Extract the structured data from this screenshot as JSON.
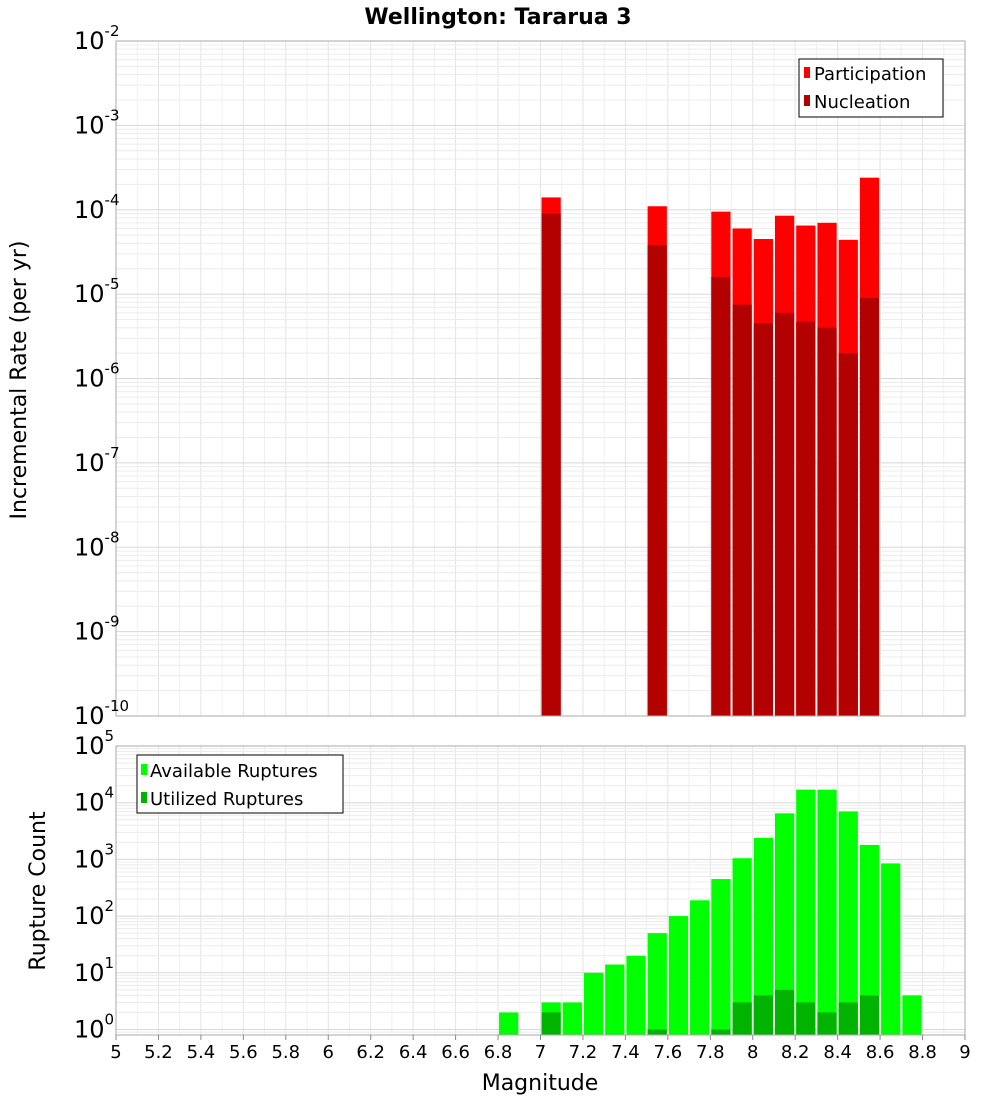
{
  "chart_data": [
    {
      "type": "bar",
      "title": "Wellington: Tararua 3",
      "xlabel": "Magnitude",
      "ylabel": "Incremental Rate (per yr)",
      "yscale": "log",
      "xlim": [
        5,
        9
      ],
      "ylim": [
        1e-10,
        0.01
      ],
      "bin_width": 0.1,
      "grid": true,
      "legend_position": "top-right",
      "y_tick_exponents": [
        "-2",
        "-3",
        "-4",
        "-5",
        "-6",
        "-7",
        "-8",
        "-9",
        "-10"
      ],
      "series": [
        {
          "name": "Participation",
          "color": "#ff0000",
          "x": [
            7.05,
            7.55,
            7.85,
            7.95,
            8.05,
            8.15,
            8.25,
            8.35,
            8.45,
            8.55
          ],
          "values": [
            0.00014,
            0.00011,
            9.5e-05,
            6e-05,
            4.5e-05,
            8.5e-05,
            6.5e-05,
            7e-05,
            4.4e-05,
            0.00024
          ]
        },
        {
          "name": "Nucleation",
          "color": "#b30000",
          "x": [
            7.05,
            7.55,
            7.85,
            7.95,
            8.05,
            8.15,
            8.25,
            8.35,
            8.45,
            8.55
          ],
          "values": [
            9e-05,
            3.8e-05,
            1.6e-05,
            7.5e-06,
            4.5e-06,
            6e-06,
            4.7e-06,
            4e-06,
            2e-06,
            9e-06
          ]
        }
      ]
    },
    {
      "type": "bar",
      "xlabel": "Magnitude",
      "ylabel": "Rupture Count",
      "yscale": "log",
      "xlim": [
        5,
        9
      ],
      "ylim": [
        0.8,
        100000.0
      ],
      "bin_width": 0.1,
      "grid": true,
      "legend_position": "top-left",
      "x_ticks": [
        "5",
        "5.2",
        "5.4",
        "5.6",
        "5.8",
        "6",
        "6.2",
        "6.4",
        "6.6",
        "6.8",
        "7",
        "7.2",
        "7.4",
        "7.6",
        "7.8",
        "8",
        "8.2",
        "8.4",
        "8.6",
        "8.8",
        "9"
      ],
      "y_tick_exponents": [
        "5",
        "4",
        "3",
        "2",
        "1",
        "0"
      ],
      "series": [
        {
          "name": "Available Ruptures",
          "color": "#00ff00",
          "x": [
            6.85,
            7.05,
            7.15,
            7.25,
            7.35,
            7.45,
            7.55,
            7.65,
            7.75,
            7.85,
            7.95,
            8.05,
            8.15,
            8.25,
            8.35,
            8.45,
            8.55,
            8.65,
            8.75
          ],
          "values": [
            2,
            3,
            3,
            10,
            14,
            20,
            50,
            100,
            190,
            450,
            1050,
            2400,
            6500,
            17000,
            17000,
            7000,
            1800,
            850,
            4
          ]
        },
        {
          "name": "Utilized Ruptures",
          "color": "#00b300",
          "x": [
            7.05,
            7.55,
            7.85,
            7.95,
            8.05,
            8.15,
            8.25,
            8.35,
            8.45,
            8.55
          ],
          "values": [
            2,
            1,
            1,
            3,
            4,
            5,
            3,
            2,
            3,
            4
          ]
        }
      ]
    }
  ]
}
